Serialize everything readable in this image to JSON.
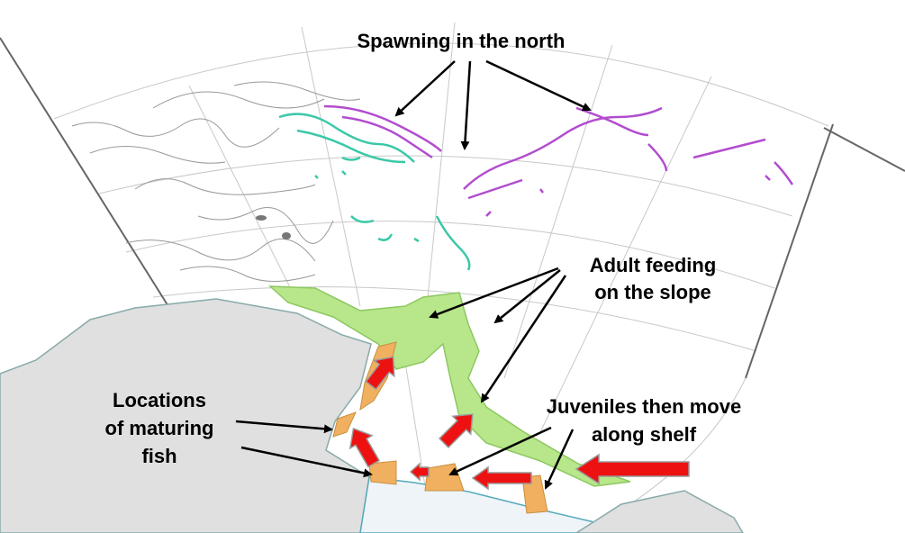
{
  "labels": {
    "spawning": "Spawning in the north",
    "adult_feeding": [
      "Adult feeding",
      "on the slope"
    ],
    "maturing": [
      "Locations",
      "of maturing",
      "fish"
    ],
    "juveniles": [
      "Juveniles then move",
      "along shelf"
    ]
  }
}
